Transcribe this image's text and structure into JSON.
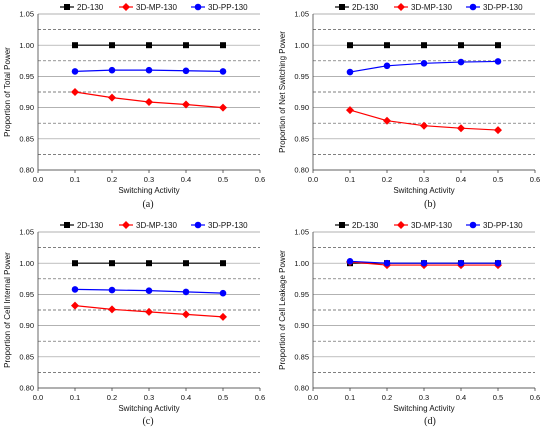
{
  "colors": {
    "2D-130": "#000000",
    "3D-MP-130": "#ff0000",
    "3D-PP-130": "#0000ff",
    "grid_solid": "#999999",
    "grid_dashed": "#555555"
  },
  "chart_data": [
    {
      "type": "line",
      "panel_label": "(a)",
      "xlabel": "Switching Activity",
      "ylabel": "Proportion of Total Power",
      "xlim": [
        0.0,
        0.6
      ],
      "ylim": [
        0.8,
        1.05
      ],
      "xticks": [
        "0.0",
        "0.1",
        "0.2",
        "0.3",
        "0.4",
        "0.5",
        "0.6"
      ],
      "yticks": [
        "0.80",
        "0.85",
        "0.90",
        "0.95",
        "1.00",
        "1.05"
      ],
      "legend_position": "top",
      "grid": "horizontal solid major, dashed minor",
      "x": [
        0.1,
        0.2,
        0.3,
        0.4,
        0.5
      ],
      "series": [
        {
          "name": "2D-130",
          "marker": "square",
          "values": [
            1.0,
            1.0,
            1.0,
            1.0,
            1.0
          ]
        },
        {
          "name": "3D-MP-130",
          "marker": "diamond",
          "values": [
            0.925,
            0.916,
            0.909,
            0.905,
            0.9
          ]
        },
        {
          "name": "3D-PP-130",
          "marker": "circle",
          "values": [
            0.958,
            0.96,
            0.96,
            0.959,
            0.958
          ]
        }
      ]
    },
    {
      "type": "line",
      "panel_label": "(b)",
      "xlabel": "Switching Activity",
      "ylabel": "Proportion of Net Switching Power",
      "xlim": [
        0.0,
        0.6
      ],
      "ylim": [
        0.8,
        1.05
      ],
      "xticks": [
        "0.0",
        "0.1",
        "0.2",
        "0.3",
        "0.4",
        "0.5",
        "0.6"
      ],
      "yticks": [
        "0.80",
        "0.85",
        "0.90",
        "0.95",
        "1.00",
        "1.05"
      ],
      "legend_position": "top",
      "grid": "horizontal solid major, dashed minor",
      "x": [
        0.1,
        0.2,
        0.3,
        0.4,
        0.5
      ],
      "series": [
        {
          "name": "2D-130",
          "marker": "square",
          "values": [
            1.0,
            1.0,
            1.0,
            1.0,
            1.0
          ]
        },
        {
          "name": "3D-MP-130",
          "marker": "diamond",
          "values": [
            0.896,
            0.879,
            0.871,
            0.867,
            0.864
          ]
        },
        {
          "name": "3D-PP-130",
          "marker": "circle",
          "values": [
            0.957,
            0.967,
            0.971,
            0.973,
            0.974
          ]
        }
      ]
    },
    {
      "type": "line",
      "panel_label": "(c)",
      "xlabel": "Switching Activity",
      "ylabel": "Proportion of Cell Internal Power",
      "xlim": [
        0.0,
        0.6
      ],
      "ylim": [
        0.8,
        1.05
      ],
      "xticks": [
        "0.0",
        "0.1",
        "0.2",
        "0.3",
        "0.4",
        "0.5",
        "0.6"
      ],
      "yticks": [
        "0.80",
        "0.85",
        "0.90",
        "0.95",
        "1.00",
        "1.05"
      ],
      "legend_position": "top",
      "grid": "horizontal solid major, dashed minor",
      "x": [
        0.1,
        0.2,
        0.3,
        0.4,
        0.5
      ],
      "series": [
        {
          "name": "2D-130",
          "marker": "square",
          "values": [
            1.0,
            1.0,
            1.0,
            1.0,
            1.0
          ]
        },
        {
          "name": "3D-MP-130",
          "marker": "diamond",
          "values": [
            0.932,
            0.926,
            0.922,
            0.918,
            0.914
          ]
        },
        {
          "name": "3D-PP-130",
          "marker": "circle",
          "values": [
            0.958,
            0.957,
            0.956,
            0.954,
            0.952
          ]
        }
      ]
    },
    {
      "type": "line",
      "panel_label": "(d)",
      "xlabel": "Switching Activity",
      "ylabel": "Proportion of Cell Leakage Power",
      "xlim": [
        0.0,
        0.6
      ],
      "ylim": [
        0.8,
        1.05
      ],
      "xticks": [
        "0.0",
        "0.1",
        "0.2",
        "0.3",
        "0.4",
        "0.5",
        "0.6"
      ],
      "yticks": [
        "0.80",
        "0.85",
        "0.90",
        "0.95",
        "1.00",
        "1.05"
      ],
      "legend_position": "top",
      "grid": "horizontal solid major, dashed minor",
      "x": [
        0.1,
        0.2,
        0.3,
        0.4,
        0.5
      ],
      "series": [
        {
          "name": "2D-130",
          "marker": "square",
          "values": [
            1.0,
            1.0,
            1.0,
            1.0,
            1.0
          ]
        },
        {
          "name": "3D-MP-130",
          "marker": "diamond",
          "values": [
            1.002,
            0.997,
            0.997,
            0.997,
            0.997
          ]
        },
        {
          "name": "3D-PP-130",
          "marker": "circle",
          "values": [
            1.003,
            1.0,
            1.0,
            1.0,
            1.0
          ]
        }
      ]
    }
  ]
}
